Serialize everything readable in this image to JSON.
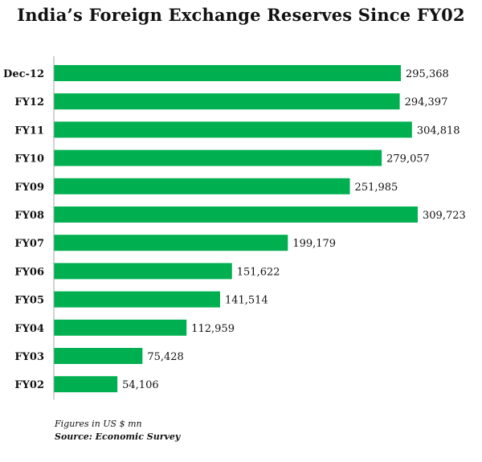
{
  "chart_data": {
    "type": "bar",
    "orientation": "horizontal",
    "title": "India’s Foreign Exchange Reserves Since FY02",
    "categories": [
      "Dec-12",
      "FY12",
      "FY11",
      "FY10",
      "FY09",
      "FY08",
      "FY07",
      "FY06",
      "FY05",
      "FY04",
      "FY03",
      "FY02"
    ],
    "values": [
      295368,
      294397,
      304818,
      279057,
      251985,
      309723,
      199179,
      151622,
      141514,
      112959,
      75428,
      54106
    ],
    "value_labels": [
      "295,368",
      "294,397",
      "304,818",
      "279,057",
      "251,985",
      "309,723",
      "199,179",
      "151,622",
      "141,514",
      "112,959",
      "75,428",
      "54,106"
    ],
    "xlabel": "",
    "ylabel": "",
    "xlim": [
      0,
      309723
    ],
    "grid": false,
    "bar_color": "#00b050",
    "axis_color": "#a6a6a6"
  },
  "notes": {
    "units": "Figures in US $ mn",
    "source": "Source: Economic Survey"
  }
}
